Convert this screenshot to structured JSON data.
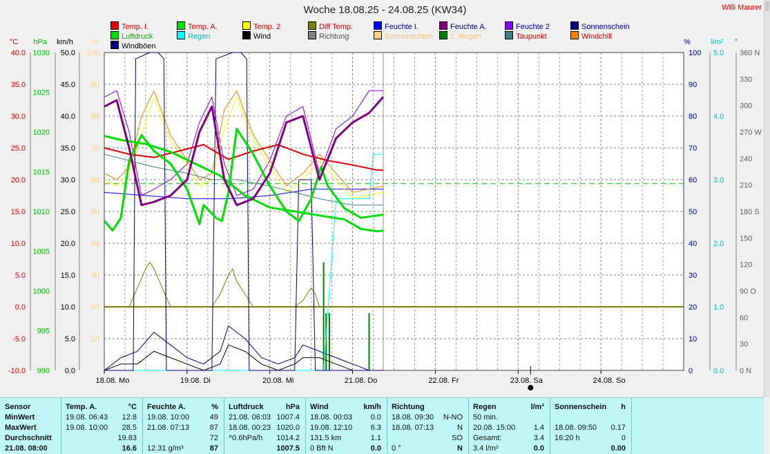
{
  "title": "Woche 18.08.25 - 24.08.25 (KW34)",
  "author": "Willi Maurer",
  "legend": [
    {
      "label": "Temp. I.",
      "color": "#e00000"
    },
    {
      "label": "Temp. A.",
      "color": "#00e000"
    },
    {
      "label": "Temp. 2",
      "color": "#ffff00"
    },
    {
      "label": "Diff Temp.",
      "color": "#808000"
    },
    {
      "label": "Feuchte I.",
      "color": "#0000ff"
    },
    {
      "label": "Feuchte A.",
      "color": "#800080"
    },
    {
      "label": "Feuchte 2",
      "color": "#8000ff"
    },
    {
      "label": "Sonnenschein",
      "color": "#000080"
    },
    {
      "label": "Luftdruck",
      "color": "#00e000"
    },
    {
      "label": "Regen",
      "color": "#00ffff"
    },
    {
      "label": "Wind",
      "color": "#000000"
    },
    {
      "label": "Richtung",
      "color": "#808080"
    },
    {
      "label": "Sonnenschein",
      "color": "#ffd080"
    },
    {
      "label": "1. Regen",
      "color": "#008000"
    },
    {
      "label": "Taupunkt",
      "color": "#408080"
    },
    {
      "label": "Windchill",
      "color": "#ff8000"
    },
    {
      "label": "Windböen",
      "color": "#000080"
    }
  ],
  "axes": {
    "celsius": {
      "unit": "°C",
      "color": "#e00000",
      "ticks": [
        "40.0",
        "35.0",
        "30.0",
        "25.0",
        "20.0",
        "15.0",
        "10.0",
        "5.0",
        "0.0",
        "-5.0",
        "-10.0"
      ]
    },
    "hpa": {
      "unit": "hPa",
      "color": "#00c000",
      "ticks": [
        "1030",
        "1025",
        "1020",
        "1015",
        "1010",
        "1005",
        "1000",
        "995",
        "990"
      ]
    },
    "kmh": {
      "unit": "km/h",
      "color": "#000000",
      "ticks": [
        "50.0",
        "45.0",
        "40.0",
        "35.0",
        "30.0",
        "25.0",
        "20.0",
        "15.0",
        "10.0",
        "5.0",
        "0.0"
      ]
    },
    "hours": {
      "unit": "h",
      "color": "#ffd080",
      "ticks": [
        "100",
        "90",
        "80",
        "70",
        "60",
        "50",
        "40",
        "30",
        "20",
        "10"
      ]
    },
    "humidity": {
      "unit": "%",
      "color": "#0000a0",
      "ticks": [
        "100",
        "90",
        "80",
        "70",
        "60",
        "50",
        "40",
        "30",
        "20",
        "10",
        "0"
      ]
    },
    "rain": {
      "unit": "l/m²",
      "color": "#00c0c0",
      "ticks": [
        "5.0",
        "4.0",
        "3.0",
        "2.0",
        "1.0",
        "0.0"
      ]
    },
    "direction": {
      "unit": "°",
      "color": "#606060",
      "ticks": [
        "360 N",
        "330",
        "300",
        "270 W",
        "240",
        "210",
        "180 S",
        "150",
        "120",
        "90 O",
        "60",
        "30",
        "0 N"
      ]
    }
  },
  "days": [
    "18.08. Mo",
    "19.08. Di",
    "20.08. Mi",
    "21.08. Do",
    "22.08. Fr",
    "23.08. Sa",
    "24.08. So"
  ],
  "chart_data": {
    "type": "line",
    "x_unit": "days since 18.08. 00:00",
    "xlim": [
      0,
      7
    ],
    "ylim_celsius": [
      -10,
      40
    ],
    "ylim_hpa": [
      990,
      1030
    ],
    "ylim_percent": [
      0,
      100
    ],
    "ylim_kmh": [
      0,
      50
    ],
    "ylim_rain": [
      0,
      5
    ],
    "series": [
      {
        "name": "Temp. I.",
        "axis": "celsius",
        "color": "#e00000",
        "width": 2,
        "x": [
          0,
          0.3,
          0.6,
          0.9,
          1.2,
          1.5,
          1.8,
          2.1,
          2.4,
          2.7,
          3.0,
          3.3,
          3.37
        ],
        "y": [
          25.0,
          24.0,
          23.5,
          24.5,
          25.5,
          23.2,
          24.5,
          25.5,
          24.0,
          23.0,
          22.3,
          21.5,
          21.5
        ]
      },
      {
        "name": "Temp. A.",
        "axis": "celsius",
        "color": "#00e000",
        "width": 3,
        "x": [
          0,
          0.1,
          0.2,
          0.3,
          0.45,
          0.6,
          0.8,
          1.0,
          1.15,
          1.2,
          1.35,
          1.42,
          1.5,
          1.6,
          1.8,
          2.0,
          2.2,
          2.35,
          2.5,
          2.62,
          2.7,
          2.9,
          3.1,
          3.37
        ],
        "y": [
          13.5,
          12.0,
          14.0,
          23.0,
          27.0,
          24.5,
          22.5,
          18.5,
          13.0,
          16.0,
          14.0,
          13.5,
          18.0,
          28.0,
          24.0,
          19.0,
          15.0,
          13.5,
          17.0,
          22.0,
          19.0,
          15.5,
          14.0,
          14.5
        ]
      },
      {
        "name": "Luftdruck",
        "axis": "hpa",
        "color": "#00e000",
        "width": 3,
        "x": [
          0,
          0.2,
          0.5,
          0.8,
          1.1,
          1.4,
          1.7,
          2.0,
          2.3,
          2.6,
          2.9,
          3.1,
          3.3,
          3.37
        ],
        "y": [
          1019.5,
          1019,
          1018.5,
          1017.5,
          1016,
          1014.5,
          1012,
          1010.5,
          1010,
          1009.5,
          1009,
          1007.8,
          1007.5,
          1007.6
        ]
      },
      {
        "name": "Feuchte A.",
        "axis": "percent",
        "color": "#800080",
        "width": 3,
        "x": [
          0,
          0.15,
          0.3,
          0.45,
          0.6,
          0.8,
          1.0,
          1.15,
          1.3,
          1.45,
          1.6,
          1.8,
          2.0,
          2.2,
          2.4,
          2.6,
          2.8,
          3.0,
          3.2,
          3.37
        ],
        "y": [
          83,
          85,
          70,
          52,
          53,
          55,
          60,
          75,
          83,
          60,
          52,
          54,
          62,
          78,
          80,
          60,
          73,
          78,
          81,
          86
        ]
      },
      {
        "name": "Feuchte 2",
        "axis": "percent",
        "color": "#8000ff",
        "width": 1,
        "x": [
          0,
          0.15,
          0.3,
          0.45,
          0.6,
          0.8,
          1.0,
          1.15,
          1.3,
          1.45,
          1.6,
          1.8,
          2.0,
          2.2,
          2.4,
          2.6,
          2.8,
          3.0,
          3.2,
          3.37
        ],
        "y": [
          86,
          88,
          75,
          55,
          57,
          60,
          65,
          78,
          86,
          65,
          55,
          57,
          66,
          80,
          83,
          62,
          76,
          80,
          88,
          88
        ]
      },
      {
        "name": "Feuchte I.",
        "axis": "percent",
        "color": "#0000ff",
        "width": 1,
        "x": [
          0,
          0.5,
          1.0,
          1.5,
          2.0,
          2.5,
          3.0,
          3.37
        ],
        "y": [
          56,
          55,
          54,
          54,
          55,
          57,
          57,
          57
        ]
      },
      {
        "name": "Temp. 2",
        "axis": "celsius",
        "color": "#ffff00",
        "width": 1,
        "x": [
          0,
          0.15,
          0.3,
          0.45,
          0.6,
          0.8,
          1.0,
          1.15,
          1.3,
          1.45,
          1.6,
          1.8,
          2.0,
          2.2,
          2.4,
          2.6,
          2.8,
          3.0,
          3.37
        ],
        "y": [
          20,
          19,
          21,
          27,
          33,
          26,
          22,
          19,
          20,
          28,
          33,
          26,
          22,
          18,
          20,
          23,
          20,
          17,
          18
        ]
      },
      {
        "name": "Windchill",
        "axis": "celsius",
        "color": "#ff8000",
        "width": 1,
        "x": [
          0,
          0.15,
          0.3,
          0.45,
          0.6,
          0.8,
          1.0,
          1.15,
          1.3,
          1.45,
          1.6,
          1.8,
          2.0,
          2.2,
          2.4,
          2.6,
          2.8,
          3.0,
          3.37
        ],
        "y": [
          21,
          20,
          22,
          30,
          34,
          27,
          23,
          20,
          21,
          31,
          34,
          27,
          23,
          19,
          21,
          24,
          21,
          18,
          19
        ]
      },
      {
        "name": "Taupunkt",
        "axis": "celsius",
        "color": "#408080",
        "width": 1,
        "x": [
          0,
          0.3,
          0.6,
          1.0,
          1.3,
          1.6,
          2.0,
          2.3,
          2.6,
          3.0,
          3.37
        ],
        "y": [
          24,
          23,
          22,
          21,
          20,
          20,
          19,
          18,
          17,
          16,
          16
        ]
      },
      {
        "name": "Diff Temp.",
        "axis": "celsius",
        "color": "#808000",
        "width": 1,
        "x": [
          0,
          0.3,
          0.4,
          0.5,
          0.55,
          0.6,
          0.7,
          0.8,
          1.0,
          1.3,
          1.4,
          1.5,
          1.55,
          1.6,
          1.7,
          1.8,
          2.0,
          2.3,
          2.4,
          2.5,
          2.55,
          2.6,
          3.37
        ],
        "y": [
          0,
          0,
          3,
          6,
          7,
          6,
          3,
          0,
          0,
          0,
          2,
          5,
          6,
          4,
          2,
          0,
          0,
          0,
          1,
          3,
          2,
          0,
          0
        ]
      },
      {
        "name": "Windböen",
        "axis": "kmh",
        "color": "#000080",
        "width": 1,
        "x": [
          0,
          0.2,
          0.4,
          0.6,
          0.8,
          1.0,
          1.2,
          1.4,
          1.5,
          1.7,
          1.9,
          2.1,
          2.3,
          2.4,
          2.6,
          2.8,
          3.0,
          3.2,
          3.37
        ],
        "y": [
          0,
          2,
          3,
          6,
          4,
          2,
          1,
          3,
          7,
          5,
          2,
          1,
          2,
          4,
          3,
          2,
          1,
          0,
          0
        ]
      },
      {
        "name": "Wind",
        "axis": "kmh",
        "color": "#000000",
        "width": 1,
        "x": [
          0,
          0.2,
          0.4,
          0.6,
          0.8,
          1.0,
          1.2,
          1.4,
          1.5,
          1.7,
          1.9,
          2.1,
          2.3,
          2.4,
          2.6,
          2.8,
          3.0,
          3.2,
          3.37
        ],
        "y": [
          0,
          1,
          1,
          3,
          2,
          1,
          0,
          1,
          4,
          3,
          1,
          0,
          1,
          2,
          2,
          1,
          0,
          0,
          0
        ]
      },
      {
        "name": "Regen",
        "axis": "rain",
        "color": "#00ffff",
        "width": 1,
        "x": [
          0,
          2.65,
          2.8,
          3.2,
          3.25,
          3.37
        ],
        "y": [
          0,
          0,
          2.7,
          2.7,
          3.4,
          3.4
        ]
      },
      {
        "name": "Sonnenschein",
        "axis": "percent",
        "color": "#000080",
        "width": 1,
        "x": [
          0,
          0.35,
          0.38,
          0.55,
          0.65,
          0.72,
          0.75,
          1.3,
          1.35,
          1.55,
          1.65,
          1.72,
          1.75,
          2.3,
          2.35,
          2.5,
          2.55,
          3.37
        ],
        "y": [
          0,
          0,
          98,
          100,
          100,
          98,
          0,
          0,
          98,
          100,
          100,
          98,
          0,
          0,
          60,
          60,
          0,
          0
        ]
      }
    ],
    "reference_lines": [
      {
        "axis": "celsius",
        "value": 0,
        "color": "#808000"
      },
      {
        "axis": "hpa",
        "value": 1013.5,
        "color": "#00c000",
        "dashed": true
      }
    ],
    "rain_bars": {
      "axis": "rain",
      "color": "#008000",
      "x": [
        2.65,
        2.68,
        2.72,
        3.2
      ],
      "y": [
        1.7,
        0.9,
        0.9,
        0.9
      ]
    },
    "now_marker": 5.15
  },
  "table": {
    "columns": [
      {
        "header": [
          "Sensor",
          ""
        ],
        "rows": [
          [
            "MinWert",
            ""
          ],
          [
            "MaxWert",
            ""
          ],
          [
            "Durchschnitt",
            ""
          ],
          [
            "21.08. 08:00",
            ""
          ]
        ]
      },
      {
        "header": [
          "Temp. A.",
          "°C"
        ],
        "rows": [
          [
            "19.08. 06:43",
            "12.8"
          ],
          [
            "19.08. 10:00",
            "28.5"
          ],
          [
            "",
            "19.83"
          ],
          [
            "",
            "16.6"
          ]
        ]
      },
      {
        "header": [
          "Feuchte A.",
          "%"
        ],
        "rows": [
          [
            "19.08. 10:00",
            "49"
          ],
          [
            "21.08. 07:13",
            "87"
          ],
          [
            "",
            "72"
          ],
          [
            "12.31 g/m³",
            "87"
          ]
        ]
      },
      {
        "header": [
          "Luftdruck",
          "hPa"
        ],
        "rows": [
          [
            "21.08. 06:03",
            "1007.4"
          ],
          [
            "18.08. 00:23",
            "1020.0"
          ],
          [
            "^0.6hPa/h",
            "1014.2"
          ],
          [
            "",
            "1007.5"
          ]
        ]
      },
      {
        "header": [
          "Wind",
          "km/h"
        ],
        "rows": [
          [
            "18.08. 00:03",
            "0.0"
          ],
          [
            "19.08. 12:10",
            "6.3"
          ],
          [
            "131.5 km",
            "1.1"
          ],
          [
            "0 Bft N",
            "0.0"
          ]
        ]
      },
      {
        "header": [
          "Richtung",
          ""
        ],
        "rows": [
          [
            "18.08. 09:30",
            "N-NO"
          ],
          [
            "18.08. 07:13",
            "N"
          ],
          [
            "",
            "SO"
          ],
          [
            "0 °",
            "N"
          ]
        ]
      },
      {
        "header": [
          "Regen",
          "l/m²"
        ],
        "rows": [
          [
            "50 min.",
            ""
          ],
          [
            "20.08. 15:00",
            "1.4"
          ],
          [
            "Gesamt:",
            "3.4"
          ],
          [
            "3.4 l/m²",
            "0.0"
          ]
        ]
      },
      {
        "header": [
          "Sonnenschein",
          "h"
        ],
        "rows": [
          [
            "",
            ""
          ],
          [
            "18.08. 09:50",
            "0.17"
          ],
          [
            "16:20 h",
            "0"
          ],
          [
            "",
            "0.00"
          ]
        ]
      }
    ]
  }
}
